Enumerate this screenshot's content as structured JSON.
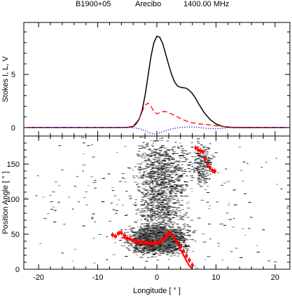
{
  "header": {
    "source": "B1900+05",
    "telescope": "Arecibo",
    "frequency": "1400.00 MHz"
  },
  "colors": {
    "stokes_i": "#000000",
    "stokes_l": "#ff0000",
    "stokes_v": "#0000ff",
    "pa_points": "#ff0000",
    "pa_fit": "#ff0000",
    "density": "#000000"
  },
  "chart_data": [
    {
      "type": "line",
      "panel": "profile",
      "ylabel": "Stokes I, L, V",
      "xlim": [
        -22.5,
        22.5
      ],
      "ylim": [
        -0.8,
        9.9
      ],
      "yticks": [
        0,
        5
      ],
      "xticks": [
        -20,
        -10,
        0,
        10,
        20
      ],
      "series": [
        {
          "key": "I",
          "style": "solid",
          "x": [
            -22,
            -10,
            -6,
            -5,
            -4,
            -3.5,
            -3,
            -2.5,
            -2,
            -1.5,
            -1,
            -0.5,
            0,
            0.5,
            1,
            1.5,
            2,
            2.5,
            3,
            3.5,
            4,
            4.5,
            5,
            5.5,
            6,
            6.5,
            7,
            8,
            9,
            10,
            11,
            12,
            13,
            14,
            22
          ],
          "values": [
            0,
            0,
            0,
            0.02,
            0.1,
            0.35,
            0.8,
            1.6,
            3.0,
            4.8,
            6.7,
            8.0,
            8.6,
            8.5,
            7.9,
            6.9,
            5.9,
            5.0,
            4.3,
            3.9,
            3.8,
            3.75,
            3.7,
            3.5,
            3.2,
            2.8,
            2.3,
            1.4,
            0.75,
            0.35,
            0.12,
            0.04,
            0.01,
            0,
            0
          ]
        },
        {
          "key": "L",
          "style": "dashed",
          "x": [
            -22,
            -6,
            -5,
            -4,
            -3,
            -2.5,
            -2,
            -1.5,
            -1,
            -0.5,
            0,
            0.5,
            1,
            1.5,
            2,
            3,
            4,
            5,
            6,
            7,
            8,
            9,
            10,
            11,
            12,
            22
          ],
          "values": [
            0,
            0,
            0.02,
            0.15,
            0.8,
            1.5,
            2.1,
            2.3,
            2.0,
            1.5,
            1.3,
            1.4,
            1.5,
            1.5,
            1.4,
            1.15,
            0.85,
            0.6,
            0.45,
            0.35,
            0.3,
            0.25,
            0.18,
            0.1,
            0.03,
            0
          ]
        },
        {
          "key": "V",
          "style": "dotted",
          "x": [
            -22,
            -5,
            -4,
            -3,
            -2,
            -1.5,
            -1,
            -0.5,
            0,
            0.5,
            1,
            1.5,
            2,
            3,
            4,
            5,
            6,
            7,
            8,
            9,
            10,
            11,
            12,
            22
          ],
          "values": [
            0,
            0,
            -0.02,
            -0.1,
            -0.3,
            -0.45,
            -0.55,
            -0.6,
            -0.58,
            -0.5,
            -0.4,
            -0.3,
            -0.2,
            -0.08,
            0,
            0.05,
            0.05,
            0.02,
            -0.05,
            -0.1,
            -0.12,
            -0.08,
            -0.02,
            0
          ]
        }
      ]
    },
    {
      "type": "scatter",
      "panel": "position-angle",
      "xlabel": "Longitude [ ° ]",
      "ylabel": "Position Angle [ ° ]",
      "xlim": [
        -22.5,
        22.5
      ],
      "ylim": [
        0,
        190
      ],
      "xticks": [
        -20,
        -10,
        0,
        10,
        20
      ],
      "yticks": [
        0,
        50,
        100,
        150
      ],
      "series": [
        {
          "key": "PA measurements",
          "x": [
            -7.5,
            -7.0,
            -6.5,
            -6.0,
            -5.5,
            -5.0,
            -4.5,
            -4.0,
            -3.5,
            -3.0,
            -2.5,
            -2.0,
            -1.5,
            -1.0,
            -0.5,
            0.0,
            0.5,
            1.0,
            1.5,
            2.0,
            2.5,
            3.0,
            3.5,
            4.0,
            4.5,
            5.0,
            5.5,
            6.0,
            6.6,
            7.0,
            7.4,
            7.8,
            8.2,
            8.6,
            9.0,
            9.4,
            9.8
          ],
          "values": [
            49,
            47,
            51,
            52,
            48,
            44,
            43,
            41,
            40,
            39,
            38,
            38,
            37,
            37,
            37,
            38,
            40,
            43,
            48,
            52,
            50,
            44,
            38,
            32,
            26,
            19,
            13,
            6,
            173,
            170,
            169,
            167,
            158,
            150,
            145,
            141,
            140
          ]
        },
        {
          "key": "RVM fit",
          "x": [
            -6,
            -5,
            -4,
            -3,
            -2,
            -1,
            0,
            1,
            1.5,
            2,
            2.5,
            3,
            3.5,
            4,
            4.5,
            5,
            5.5,
            6
          ],
          "values": [
            45,
            44,
            42,
            40,
            38,
            37,
            37,
            40,
            44,
            50,
            51,
            44,
            36,
            28,
            20,
            12,
            5,
            -1
          ]
        }
      ],
      "density_clusters": [
        {
          "x_center": 0,
          "x_spread": 4,
          "y_center": 42,
          "y_spread": 16,
          "n": 2000
        },
        {
          "x_center": 0.5,
          "x_spread": 3.5,
          "y_center": 95,
          "y_spread": 55,
          "n": 900
        },
        {
          "x_center": 1,
          "x_spread": 4,
          "y_center": 150,
          "y_spread": 30,
          "n": 450
        },
        {
          "x_center": 7.5,
          "x_spread": 1.5,
          "y_center": 150,
          "y_spread": 25,
          "n": 220
        },
        {
          "x_center": 0,
          "x_spread": 20,
          "y_center": 95,
          "y_spread": 90,
          "n": 260
        }
      ]
    }
  ]
}
